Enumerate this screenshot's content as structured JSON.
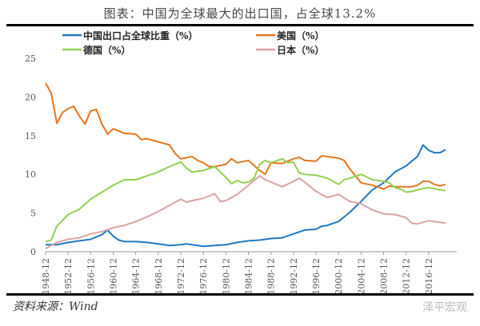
{
  "title": "图表：中国为全球最大的出口国，占全球13.2%",
  "source": "资料来源：Wind",
  "watermark": "泽平宏观",
  "chart_data": {
    "type": "line",
    "title": "图表：中国为全球最大的出口国，占全球13.2%",
    "xlabel": "",
    "ylabel": "",
    "ylim": [
      0,
      25
    ],
    "yticks": [
      0,
      5,
      10,
      15,
      20,
      25
    ],
    "xticks": [
      "1948-12",
      "1952-12",
      "1956-12",
      "1960-12",
      "1964-12",
      "1968-12",
      "1972-12",
      "1976-12",
      "1980-12",
      "1984-12",
      "1988-12",
      "1992-12",
      "1996-12",
      "2000-12",
      "2004-12",
      "2008-12",
      "2012-12",
      "2016-12"
    ],
    "xrange": [
      "1948-12",
      "2019-12"
    ],
    "grid": false,
    "legend_position": "top",
    "series": [
      {
        "name": "中国出口占全球比重（%）",
        "color": "#1f78c1",
        "points": [
          [
            "1948-12",
            0.9
          ],
          [
            "1950-12",
            0.9
          ],
          [
            "1952-12",
            1.2
          ],
          [
            "1954-12",
            1.4
          ],
          [
            "1956-12",
            1.6
          ],
          [
            "1958-12",
            2.2
          ],
          [
            "1959-12",
            2.8
          ],
          [
            "1960-12",
            2.0
          ],
          [
            "1961-12",
            1.5
          ],
          [
            "1962-12",
            1.3
          ],
          [
            "1964-12",
            1.3
          ],
          [
            "1966-12",
            1.2
          ],
          [
            "1968-12",
            1.0
          ],
          [
            "1970-12",
            0.8
          ],
          [
            "1972-12",
            0.9
          ],
          [
            "1973-12",
            1.0
          ],
          [
            "1974-12",
            0.9
          ],
          [
            "1976-12",
            0.7
          ],
          [
            "1978-12",
            0.8
          ],
          [
            "1980-12",
            0.9
          ],
          [
            "1982-12",
            1.2
          ],
          [
            "1984-12",
            1.4
          ],
          [
            "1986-12",
            1.5
          ],
          [
            "1988-12",
            1.7
          ],
          [
            "1990-12",
            1.8
          ],
          [
            "1992-12",
            2.3
          ],
          [
            "1994-12",
            2.8
          ],
          [
            "1996-12",
            2.9
          ],
          [
            "1997-12",
            3.3
          ],
          [
            "1998-12",
            3.4
          ],
          [
            "2000-12",
            3.9
          ],
          [
            "2002-12",
            5.1
          ],
          [
            "2004-12",
            6.5
          ],
          [
            "2006-12",
            8.0
          ],
          [
            "2008-12",
            8.9
          ],
          [
            "2009-12",
            9.6
          ],
          [
            "2010-12",
            10.3
          ],
          [
            "2012-12",
            11.1
          ],
          [
            "2013-12",
            11.7
          ],
          [
            "2014-12",
            12.3
          ],
          [
            "2015-12",
            13.8
          ],
          [
            "2016-12",
            13.1
          ],
          [
            "2017-12",
            12.8
          ],
          [
            "2018-12",
            12.8
          ],
          [
            "2019-12",
            13.2
          ]
        ]
      },
      {
        "name": "美国（%）",
        "color": "#e5761d",
        "points": [
          [
            "1948-12",
            21.8
          ],
          [
            "1949-12",
            20.5
          ],
          [
            "1950-12",
            16.6
          ],
          [
            "1951-12",
            18.0
          ],
          [
            "1952-12",
            18.5
          ],
          [
            "1953-12",
            18.8
          ],
          [
            "1954-12",
            17.5
          ],
          [
            "1955-12",
            16.5
          ],
          [
            "1956-12",
            18.2
          ],
          [
            "1957-12",
            18.4
          ],
          [
            "1958-12",
            16.5
          ],
          [
            "1959-12",
            15.2
          ],
          [
            "1960-12",
            15.9
          ],
          [
            "1962-12",
            15.3
          ],
          [
            "1964-12",
            15.2
          ],
          [
            "1965-12",
            14.5
          ],
          [
            "1966-12",
            14.6
          ],
          [
            "1968-12",
            14.2
          ],
          [
            "1970-12",
            13.8
          ],
          [
            "1971-12",
            12.7
          ],
          [
            "1972-12",
            12.0
          ],
          [
            "1974-12",
            12.3
          ],
          [
            "1975-12",
            11.8
          ],
          [
            "1976-12",
            11.5
          ],
          [
            "1977-12",
            11.0
          ],
          [
            "1978-12",
            11.0
          ],
          [
            "1980-12",
            11.3
          ],
          [
            "1981-12",
            12.0
          ],
          [
            "1982-12",
            11.5
          ],
          [
            "1984-12",
            11.8
          ],
          [
            "1986-12",
            10.5
          ],
          [
            "1987-12",
            10.0
          ],
          [
            "1988-12",
            11.5
          ],
          [
            "1990-12",
            11.4
          ],
          [
            "1992-12",
            12.0
          ],
          [
            "1993-12",
            12.2
          ],
          [
            "1994-12",
            11.8
          ],
          [
            "1996-12",
            11.7
          ],
          [
            "1997-12",
            12.4
          ],
          [
            "1998-12",
            12.3
          ],
          [
            "2000-12",
            12.1
          ],
          [
            "2001-12",
            11.8
          ],
          [
            "2002-12",
            10.7
          ],
          [
            "2004-12",
            8.9
          ],
          [
            "2006-12",
            8.6
          ],
          [
            "2008-12",
            8.1
          ],
          [
            "2009-12",
            8.5
          ],
          [
            "2010-12",
            8.4
          ],
          [
            "2012-12",
            8.4
          ],
          [
            "2013-12",
            8.4
          ],
          [
            "2014-12",
            8.6
          ],
          [
            "2015-12",
            9.1
          ],
          [
            "2016-12",
            9.1
          ],
          [
            "2017-12",
            8.7
          ],
          [
            "2018-12",
            8.5
          ],
          [
            "2019-12",
            8.7
          ]
        ]
      },
      {
        "name": "德国（%）",
        "color": "#92d050",
        "points": [
          [
            "1948-12",
            1.3
          ],
          [
            "1949-12",
            1.5
          ],
          [
            "1950-12",
            3.3
          ],
          [
            "1952-12",
            4.8
          ],
          [
            "1954-12",
            5.5
          ],
          [
            "1956-12",
            6.8
          ],
          [
            "1958-12",
            7.7
          ],
          [
            "1960-12",
            8.6
          ],
          [
            "1962-12",
            9.3
          ],
          [
            "1964-12",
            9.3
          ],
          [
            "1966-12",
            9.8
          ],
          [
            "1968-12",
            10.3
          ],
          [
            "1970-12",
            11.0
          ],
          [
            "1972-12",
            11.6
          ],
          [
            "1973-12",
            10.8
          ],
          [
            "1974-12",
            10.3
          ],
          [
            "1976-12",
            10.5
          ],
          [
            "1978-12",
            11.0
          ],
          [
            "1980-12",
            9.6
          ],
          [
            "1981-12",
            8.8
          ],
          [
            "1982-12",
            9.2
          ],
          [
            "1983-12",
            8.9
          ],
          [
            "1984-12",
            9.0
          ],
          [
            "1985-12",
            9.5
          ],
          [
            "1986-12",
            11.3
          ],
          [
            "1987-12",
            11.8
          ],
          [
            "1988-12",
            11.5
          ],
          [
            "1990-12",
            12.0
          ],
          [
            "1991-12",
            11.5
          ],
          [
            "1992-12",
            11.6
          ],
          [
            "1993-12",
            10.2
          ],
          [
            "1994-12",
            10.0
          ],
          [
            "1996-12",
            9.9
          ],
          [
            "1998-12",
            9.5
          ],
          [
            "2000-12",
            8.7
          ],
          [
            "2001-12",
            9.3
          ],
          [
            "2002-12",
            9.5
          ],
          [
            "2004-12",
            10.0
          ],
          [
            "2006-12",
            9.3
          ],
          [
            "2008-12",
            9.1
          ],
          [
            "2009-12",
            8.9
          ],
          [
            "2010-12",
            8.3
          ],
          [
            "2011-12",
            8.1
          ],
          [
            "2012-12",
            7.7
          ],
          [
            "2013-12",
            7.8
          ],
          [
            "2014-12",
            8.0
          ],
          [
            "2016-12",
            8.3
          ],
          [
            "2018-12",
            8.0
          ],
          [
            "2019-12",
            7.9
          ]
        ]
      },
      {
        "name": "日本（%）",
        "color": "#d9a3a3",
        "points": [
          [
            "1948-12",
            0.4
          ],
          [
            "1950-12",
            1.2
          ],
          [
            "1952-12",
            1.6
          ],
          [
            "1954-12",
            1.8
          ],
          [
            "1956-12",
            2.3
          ],
          [
            "1958-12",
            2.6
          ],
          [
            "1960-12",
            3.1
          ],
          [
            "1962-12",
            3.4
          ],
          [
            "1964-12",
            3.9
          ],
          [
            "1966-12",
            4.5
          ],
          [
            "1968-12",
            5.2
          ],
          [
            "1970-12",
            6.0
          ],
          [
            "1972-12",
            6.8
          ],
          [
            "1973-12",
            6.4
          ],
          [
            "1974-12",
            6.6
          ],
          [
            "1976-12",
            6.9
          ],
          [
            "1978-12",
            7.5
          ],
          [
            "1979-12",
            6.5
          ],
          [
            "1980-12",
            6.6
          ],
          [
            "1982-12",
            7.4
          ],
          [
            "1984-12",
            8.6
          ],
          [
            "1986-12",
            9.8
          ],
          [
            "1987-12",
            9.3
          ],
          [
            "1988-12",
            9.0
          ],
          [
            "1990-12",
            8.4
          ],
          [
            "1992-12",
            9.1
          ],
          [
            "1993-12",
            9.5
          ],
          [
            "1994-12",
            9.0
          ],
          [
            "1996-12",
            7.8
          ],
          [
            "1998-12",
            7.0
          ],
          [
            "2000-12",
            7.4
          ],
          [
            "2002-12",
            6.5
          ],
          [
            "2004-12",
            6.2
          ],
          [
            "2006-12",
            5.4
          ],
          [
            "2008-12",
            4.9
          ],
          [
            "2010-12",
            4.8
          ],
          [
            "2012-12",
            4.4
          ],
          [
            "2013-12",
            3.7
          ],
          [
            "2014-12",
            3.6
          ],
          [
            "2016-12",
            4.0
          ],
          [
            "2018-12",
            3.8
          ],
          [
            "2019-12",
            3.7
          ]
        ]
      }
    ]
  }
}
